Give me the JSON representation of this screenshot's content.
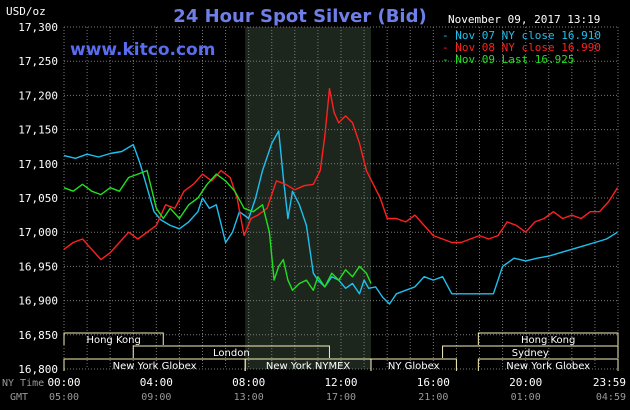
{
  "chart_data": {
    "type": "line",
    "title": "24 Hour Spot Silver (Bid)",
    "source": "www.kitco.com",
    "date": "November 09, 2017 13:19",
    "ylabel": "USD/oz",
    "ylim": [
      16.8,
      17.3
    ],
    "yticks": [
      "17,300",
      "17,250",
      "17,200",
      "17,150",
      "17,100",
      "17,050",
      "17,000",
      "16,950",
      "16,900",
      "16,850",
      "16,800"
    ],
    "xlim": [
      0,
      24
    ],
    "xticks_ny": [
      "00:00",
      "04:00",
      "08:00",
      "12:00",
      "16:00",
      "20:00",
      "23:59"
    ],
    "xticks_gmt": [
      "05:00",
      "09:00",
      "13:00",
      "17:00",
      "21:00",
      "01:00",
      "04:59"
    ],
    "row_label_ny": "NY Time",
    "row_label_gmt": "GMT",
    "highlight_range": [
      7.85,
      13.3
    ],
    "grid": true,
    "legend_position": "top-right",
    "series": [
      {
        "name": "Nov 07 NY close 16.910",
        "color": "#1ec0f0",
        "x": [
          0,
          0.5,
          1,
          1.5,
          2,
          2.5,
          3,
          3.3,
          3.6,
          3.9,
          4.2,
          4.6,
          5,
          5.4,
          5.8,
          6,
          6.3,
          6.6,
          7,
          7.3,
          7.6,
          8,
          8.3,
          8.6,
          9,
          9.3,
          9.5,
          9.7,
          9.9,
          10.2,
          10.5,
          10.8,
          11,
          11.3,
          11.6,
          11.9,
          12.2,
          12.5,
          12.8,
          13,
          13.2,
          13.5,
          13.8,
          14.1,
          14.4,
          14.8,
          15.2,
          15.6,
          16,
          16.4,
          16.8,
          17.2,
          17.5,
          17.8,
          18.2,
          18.6,
          19,
          19.5,
          20,
          20.5,
          21,
          21.5,
          22,
          22.5,
          23,
          23.5,
          23.98
        ],
        "y": [
          17.112,
          17.108,
          17.114,
          17.11,
          17.115,
          17.118,
          17.128,
          17.1,
          17.065,
          17.03,
          17.018,
          17.01,
          17.005,
          17.015,
          17.03,
          17.05,
          17.035,
          17.04,
          16.985,
          17.0,
          17.03,
          17.02,
          17.05,
          17.09,
          17.13,
          17.148,
          17.08,
          17.02,
          17.06,
          17.04,
          17.01,
          16.94,
          16.93,
          16.92,
          16.935,
          16.93,
          16.918,
          16.925,
          16.91,
          16.93,
          16.918,
          16.92,
          16.905,
          16.895,
          16.91,
          16.915,
          16.92,
          16.935,
          16.93,
          16.935,
          16.91,
          16.91,
          16.91,
          16.91,
          16.91,
          16.91,
          16.95,
          16.962,
          16.958,
          16.962,
          16.965,
          16.97,
          16.975,
          16.98,
          16.985,
          16.99,
          17.0
        ]
      },
      {
        "name": "Nov 08 NY close 16.990",
        "color": "#ff2020",
        "x": [
          0,
          0.4,
          0.8,
          1.2,
          1.6,
          2,
          2.4,
          2.8,
          3.2,
          3.6,
          4,
          4.4,
          4.8,
          5.2,
          5.6,
          6,
          6.4,
          6.8,
          7.2,
          7.5,
          7.8,
          8.1,
          8.4,
          8.8,
          9.2,
          9.6,
          10,
          10.4,
          10.8,
          11.1,
          11.3,
          11.5,
          11.7,
          11.9,
          12.2,
          12.5,
          12.8,
          13.1,
          13.4,
          13.7,
          14,
          14.4,
          14.8,
          15.2,
          15.6,
          16,
          16.4,
          16.8,
          17.2,
          17.6,
          18,
          18.4,
          18.8,
          19.2,
          19.6,
          20,
          20.4,
          20.8,
          21.2,
          21.6,
          22,
          22.4,
          22.8,
          23.2,
          23.6,
          23.98
        ],
        "y": [
          16.975,
          16.985,
          16.99,
          16.975,
          16.96,
          16.97,
          16.985,
          17.0,
          16.99,
          17.0,
          17.01,
          17.04,
          17.035,
          17.06,
          17.07,
          17.085,
          17.075,
          17.09,
          17.08,
          17.05,
          16.995,
          17.02,
          17.025,
          17.035,
          17.075,
          17.07,
          17.062,
          17.068,
          17.07,
          17.09,
          17.14,
          17.21,
          17.175,
          17.16,
          17.17,
          17.16,
          17.13,
          17.09,
          17.07,
          17.05,
          17.02,
          17.02,
          17.015,
          17.025,
          17.01,
          16.995,
          16.99,
          16.985,
          16.985,
          16.99,
          16.995,
          16.99,
          16.995,
          17.015,
          17.01,
          17.0,
          17.015,
          17.02,
          17.03,
          17.02,
          17.025,
          17.02,
          17.03,
          17.03,
          17.045,
          17.065
        ]
      },
      {
        "name": "Nov 09 Last 16.925",
        "color": "#20e020",
        "x": [
          0,
          0.4,
          0.8,
          1.2,
          1.6,
          2,
          2.4,
          2.8,
          3.2,
          3.6,
          4,
          4.3,
          4.6,
          5,
          5.4,
          5.8,
          6.2,
          6.6,
          7,
          7.4,
          7.8,
          8.2,
          8.6,
          8.9,
          9.1,
          9.3,
          9.5,
          9.7,
          9.9,
          10.2,
          10.5,
          10.8,
          11,
          11.3,
          11.6,
          11.9,
          12.2,
          12.5,
          12.8,
          13.1,
          13.3
        ],
        "y": [
          17.065,
          17.06,
          17.07,
          17.06,
          17.055,
          17.065,
          17.06,
          17.08,
          17.085,
          17.09,
          17.035,
          17.02,
          17.035,
          17.02,
          17.04,
          17.05,
          17.07,
          17.085,
          17.075,
          17.06,
          17.035,
          17.03,
          17.04,
          17.0,
          16.93,
          16.95,
          16.96,
          16.93,
          16.915,
          16.925,
          16.93,
          16.915,
          16.935,
          16.92,
          16.94,
          16.93,
          16.945,
          16.935,
          16.95,
          16.94,
          16.925
        ]
      }
    ],
    "markets": [
      {
        "label": "Hong Kong",
        "start": 0,
        "end": 4.3,
        "row": 1
      },
      {
        "label": "Hong Kong",
        "start": 17.95,
        "end": 24,
        "row": 1
      },
      {
        "label": "London",
        "start": 3,
        "end": 11.5,
        "row": 2
      },
      {
        "label": "Sydney",
        "start": 16.4,
        "end": 24,
        "row": 2
      },
      {
        "label": "New York Globex",
        "start": 0,
        "end": 7.85,
        "row": 3
      },
      {
        "label": "New York NYMEX",
        "start": 7.85,
        "end": 13.3,
        "row": 3
      },
      {
        "label": "NY Globex",
        "start": 13.3,
        "end": 17,
        "row": 3
      },
      {
        "label": "New York Globex",
        "start": 17.95,
        "end": 24,
        "row": 3
      }
    ],
    "colors": {
      "background": "#000000",
      "grid": "#7a7a7a",
      "highlight": "#1d261d",
      "market_box": "#f8f0b8",
      "market_text": "#ffffff",
      "title": "#6f7fe8",
      "brand": "#5a6cf0"
    }
  }
}
